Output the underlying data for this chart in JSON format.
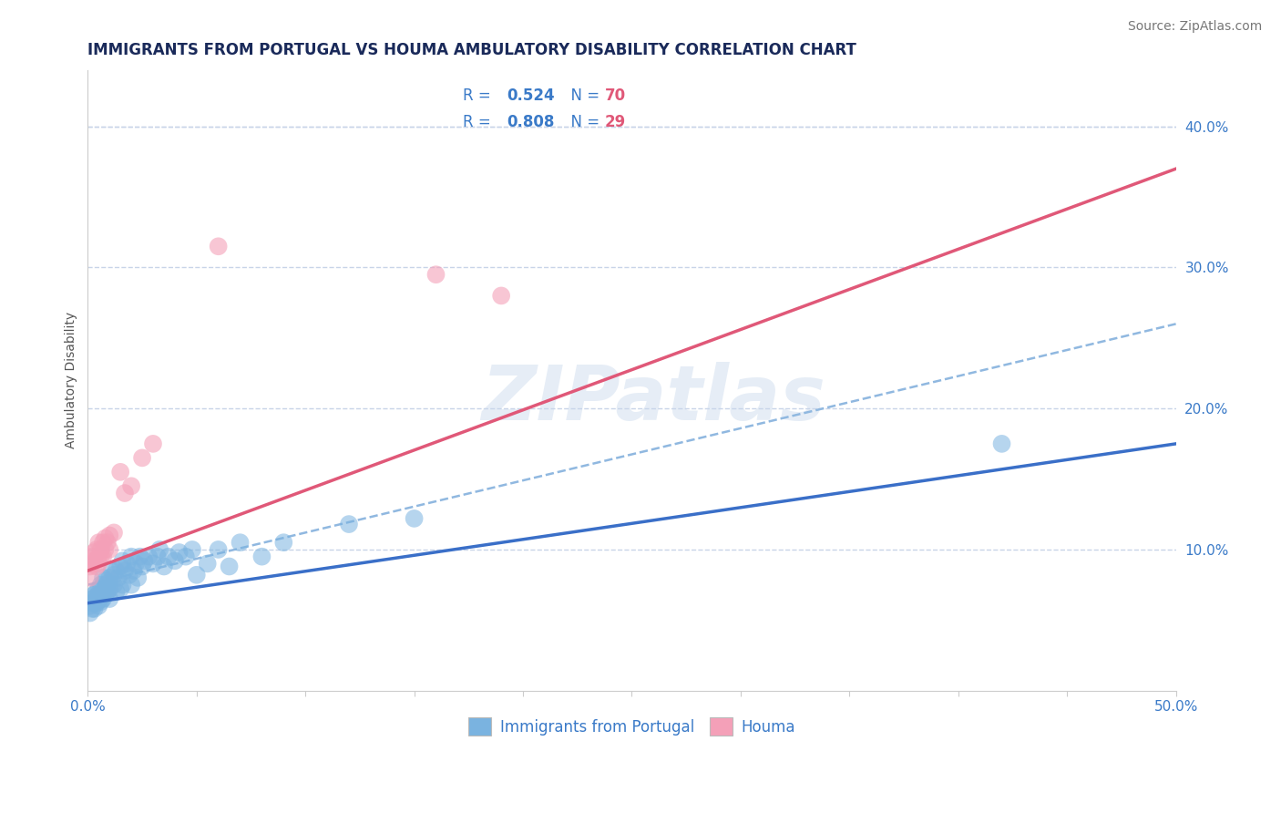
{
  "title": "IMMIGRANTS FROM PORTUGAL VS HOUMA AMBULATORY DISABILITY CORRELATION CHART",
  "source": "Source: ZipAtlas.com",
  "ylabel": "Ambulatory Disability",
  "xlim": [
    0.0,
    0.5
  ],
  "ylim": [
    0.0,
    0.44
  ],
  "xticks": [
    0.0,
    0.05,
    0.1,
    0.15,
    0.2,
    0.25,
    0.3,
    0.35,
    0.4,
    0.45,
    0.5
  ],
  "ytick_labels_right": [
    "10.0%",
    "20.0%",
    "30.0%",
    "40.0%"
  ],
  "ytick_vals_right": [
    0.1,
    0.2,
    0.3,
    0.4
  ],
  "blue_color": "#7ab3e0",
  "pink_color": "#f4a0b8",
  "blue_line_color": "#3a6fc8",
  "pink_line_color": "#e05878",
  "dashed_line_color": "#90b8e0",
  "watermark": "ZIPatlas",
  "bg_color": "#ffffff",
  "grid_color": "#c8d4e8",
  "title_color": "#1a2a5a",
  "source_color": "#777777",
  "axis_label_color": "#3a7ac8",
  "legend_text_color": "#3a7ac8",
  "legend_N_color": "#e05878",
  "title_fontsize": 12,
  "source_fontsize": 10,
  "axis_label_fontsize": 10,
  "tick_fontsize": 11,
  "blue_scatter_x": [
    0.001,
    0.001,
    0.002,
    0.002,
    0.002,
    0.003,
    0.003,
    0.003,
    0.004,
    0.004,
    0.004,
    0.005,
    0.005,
    0.005,
    0.005,
    0.006,
    0.006,
    0.006,
    0.007,
    0.007,
    0.007,
    0.008,
    0.008,
    0.008,
    0.009,
    0.009,
    0.01,
    0.01,
    0.01,
    0.011,
    0.012,
    0.012,
    0.013,
    0.013,
    0.014,
    0.015,
    0.015,
    0.016,
    0.016,
    0.017,
    0.018,
    0.019,
    0.02,
    0.02,
    0.021,
    0.022,
    0.023,
    0.024,
    0.025,
    0.026,
    0.028,
    0.03,
    0.032,
    0.033,
    0.035,
    0.037,
    0.04,
    0.042,
    0.045,
    0.048,
    0.05,
    0.055,
    0.06,
    0.065,
    0.07,
    0.08,
    0.09,
    0.12,
    0.15,
    0.42
  ],
  "blue_scatter_y": [
    0.055,
    0.06,
    0.058,
    0.062,
    0.065,
    0.058,
    0.063,
    0.068,
    0.062,
    0.067,
    0.07,
    0.06,
    0.064,
    0.068,
    0.072,
    0.063,
    0.068,
    0.075,
    0.065,
    0.07,
    0.08,
    0.068,
    0.072,
    0.078,
    0.07,
    0.076,
    0.065,
    0.072,
    0.08,
    0.085,
    0.075,
    0.082,
    0.07,
    0.085,
    0.08,
    0.072,
    0.088,
    0.075,
    0.092,
    0.085,
    0.09,
    0.082,
    0.075,
    0.095,
    0.085,
    0.09,
    0.08,
    0.095,
    0.088,
    0.092,
    0.095,
    0.09,
    0.095,
    0.1,
    0.088,
    0.095,
    0.092,
    0.098,
    0.095,
    0.1,
    0.082,
    0.09,
    0.1,
    0.088,
    0.105,
    0.095,
    0.105,
    0.118,
    0.122,
    0.175
  ],
  "pink_scatter_x": [
    0.001,
    0.001,
    0.002,
    0.002,
    0.003,
    0.003,
    0.004,
    0.004,
    0.005,
    0.005,
    0.005,
    0.006,
    0.006,
    0.007,
    0.007,
    0.008,
    0.008,
    0.009,
    0.01,
    0.01,
    0.012,
    0.015,
    0.017,
    0.02,
    0.025,
    0.03,
    0.06,
    0.16,
    0.19
  ],
  "pink_scatter_y": [
    0.08,
    0.088,
    0.09,
    0.095,
    0.092,
    0.098,
    0.088,
    0.1,
    0.09,
    0.095,
    0.105,
    0.095,
    0.1,
    0.095,
    0.105,
    0.1,
    0.108,
    0.105,
    0.1,
    0.11,
    0.112,
    0.155,
    0.14,
    0.145,
    0.165,
    0.175,
    0.315,
    0.295,
    0.28
  ],
  "blue_trend": [
    0.0,
    0.5,
    0.062,
    0.175
  ],
  "pink_trend": [
    0.0,
    0.5,
    0.085,
    0.37
  ],
  "dashed_trend": [
    0.0,
    0.5,
    0.075,
    0.26
  ]
}
